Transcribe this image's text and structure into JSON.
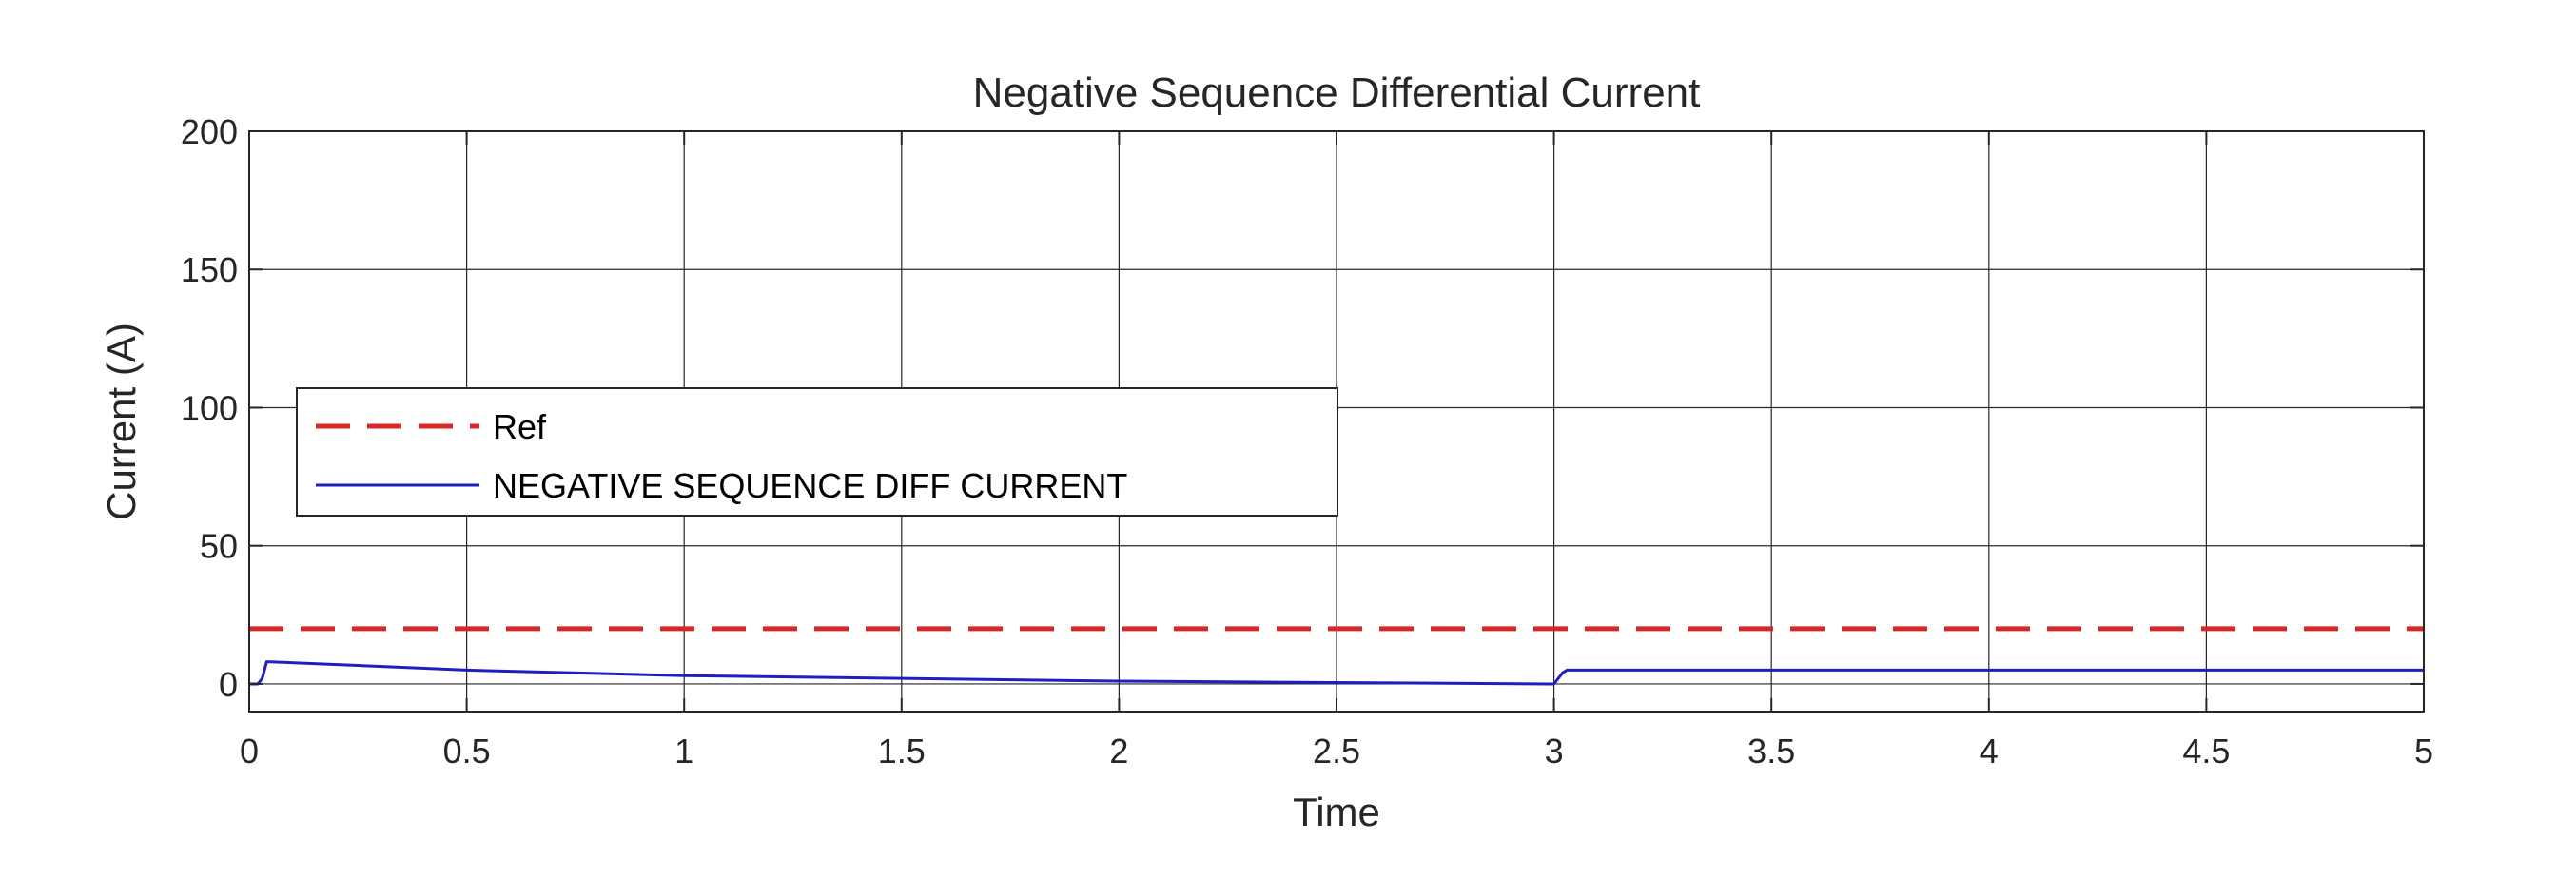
{
  "chart_data": {
    "type": "line",
    "title": "Negative Sequence Differential Current",
    "xlabel": "Time",
    "ylabel": "Current (A)",
    "xlim": [
      0,
      5
    ],
    "ylim": [
      -10,
      200
    ],
    "xticks": [
      0,
      0.5,
      1,
      1.5,
      2,
      2.5,
      3,
      3.5,
      4,
      4.5,
      5
    ],
    "xtick_labels": [
      "0",
      "0.5",
      "1",
      "1.5",
      "2",
      "2.5",
      "3",
      "3.5",
      "4",
      "4.5",
      "5"
    ],
    "yticks": [
      0,
      50,
      100,
      150,
      200
    ],
    "ytick_labels": [
      "0",
      "50",
      "100",
      "150",
      "200"
    ],
    "grid": true,
    "legend_position": "middle-left",
    "series": [
      {
        "name": "Ref",
        "color": "#d62728",
        "style": "dashed",
        "x": [
          0,
          5
        ],
        "y": [
          20,
          20
        ]
      },
      {
        "name": "NEGATIVE SEQUENCE  DIFF CURRENT",
        "color": "#1f1fbf",
        "style": "solid",
        "x": [
          0,
          0.02,
          0.03,
          0.04,
          0.05,
          0.5,
          1.0,
          1.5,
          2.0,
          2.5,
          2.99,
          3.0,
          3.02,
          3.03,
          3.5,
          4.0,
          4.5,
          5.0
        ],
        "y": [
          0,
          0,
          2,
          8,
          8,
          5,
          3,
          2,
          1,
          0.5,
          0,
          0,
          4,
          5,
          5,
          5,
          5,
          5
        ]
      }
    ]
  }
}
